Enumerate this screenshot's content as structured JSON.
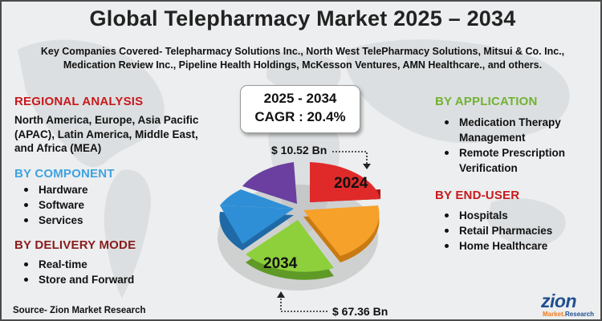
{
  "title": "Global Telepharmacy Market 2025 – 2034",
  "companies": "Key Companies Covered- Telepharmacy Solutions Inc., North West TelePharmacy Solutions, Mitsui & Co. Inc., Medication Review Inc., Pipeline Health Holdings, McKesson Ventures, AMN Healthcare., and others.",
  "regional": {
    "heading": "REGIONAL ANALYSIS",
    "text": "North America, Europe, Asia Pacific (APAC), Latin America, Middle East, and Africa (MEA)"
  },
  "component": {
    "heading": "BY COMPONENT",
    "items": [
      "Hardware",
      "Software",
      "Services"
    ]
  },
  "delivery": {
    "heading": "BY DELIVERY MODE",
    "items": [
      "Real-time",
      "Store and Forward"
    ]
  },
  "application": {
    "heading": "BY APPLICATION",
    "items": [
      "Medication Therapy Management",
      "Remote Prescription Verification"
    ]
  },
  "enduser": {
    "heading": "BY END-USER",
    "items": [
      "Hospitals",
      "Retail Pharmacies",
      "Home Healthcare"
    ]
  },
  "cagr": {
    "years": "2025 - 2034",
    "value": "CAGR : 20.4%"
  },
  "pie": {
    "label_2024": "2024",
    "label_2034": "2034",
    "value_2024": "$ 10.52 Bn",
    "value_2034": "$ 67.36 Bn",
    "colors": [
      "#e02a2a",
      "#f5a12a",
      "#8ed03b",
      "#2f8fd6",
      "#6a3fa0"
    ]
  },
  "source": "Source- Zion Market Research",
  "logo": {
    "name": "zion",
    "sub_left": "Market.",
    "sub_right": "Research"
  }
}
